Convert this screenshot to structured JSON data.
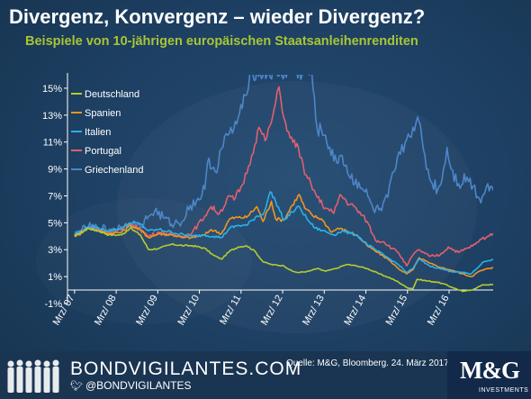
{
  "header": {
    "title": "Divergenz, Konvergenz – wieder Divergenz?",
    "subtitle": "Beispiele von 10-jährigen europäischen Staatsanleihenrenditen"
  },
  "footer": {
    "brand": "BONDVIGILANTES.COM",
    "handle": "@BONDVIGILANTES",
    "source": "Quelle: M&G, Bloomberg. 24. März 2017.",
    "logo": "M&G",
    "logo_sub": "INVESTMENTS"
  },
  "chart_data": {
    "type": "line",
    "title": "",
    "xlabel": "",
    "ylabel": "",
    "ylim": [
      -1,
      16
    ],
    "xlim": [
      2007.0,
      2017.23
    ],
    "y_ticks": [
      -1,
      1,
      3,
      5,
      7,
      9,
      11,
      13,
      15
    ],
    "y_tick_labels": [
      "-1%",
      "1%",
      "3%",
      "5%",
      "7%",
      "9%",
      "11%",
      "13%",
      "15%"
    ],
    "x_ticks": [
      2007.17,
      2008.17,
      2009.17,
      2010.17,
      2011.17,
      2012.17,
      2013.17,
      2014.17,
      2015.17,
      2016.17
    ],
    "x_tick_labels": [
      "Mrz/ 07",
      "Mrz/ 08",
      "Mrz/ 09",
      "Mrz/ 10",
      "Mrz/ 11",
      "Mrz/ 12",
      "Mrz/ 13",
      "Mrz/ 14",
      "Mrz/ 15",
      "Mrz/ 16"
    ],
    "grid": false,
    "legend_position": "top-left",
    "series": [
      {
        "name": "Deutschland",
        "color": "#b5cc2e",
        "points": [
          [
            2007.17,
            4.0
          ],
          [
            2007.5,
            4.6
          ],
          [
            2007.75,
            4.4
          ],
          [
            2008.0,
            4.1
          ],
          [
            2008.3,
            4.1
          ],
          [
            2008.5,
            4.6
          ],
          [
            2008.75,
            4.1
          ],
          [
            2008.95,
            3.0
          ],
          [
            2009.2,
            3.1
          ],
          [
            2009.5,
            3.4
          ],
          [
            2009.8,
            3.3
          ],
          [
            2010.0,
            3.3
          ],
          [
            2010.3,
            3.1
          ],
          [
            2010.5,
            2.6
          ],
          [
            2010.7,
            2.3
          ],
          [
            2010.9,
            2.9
          ],
          [
            2011.1,
            3.2
          ],
          [
            2011.3,
            3.3
          ],
          [
            2011.5,
            2.9
          ],
          [
            2011.7,
            2.1
          ],
          [
            2011.9,
            1.9
          ],
          [
            2012.2,
            1.8
          ],
          [
            2012.4,
            1.4
          ],
          [
            2012.55,
            1.3
          ],
          [
            2012.8,
            1.4
          ],
          [
            2013.0,
            1.6
          ],
          [
            2013.2,
            1.4
          ],
          [
            2013.45,
            1.6
          ],
          [
            2013.7,
            1.9
          ],
          [
            2013.95,
            1.8
          ],
          [
            2014.2,
            1.6
          ],
          [
            2014.5,
            1.2
          ],
          [
            2014.75,
            0.9
          ],
          [
            2014.95,
            0.6
          ],
          [
            2015.15,
            0.2
          ],
          [
            2015.3,
            0.1
          ],
          [
            2015.4,
            0.8
          ],
          [
            2015.6,
            0.7
          ],
          [
            2015.85,
            0.6
          ],
          [
            2016.0,
            0.5
          ],
          [
            2016.25,
            0.2
          ],
          [
            2016.5,
            -0.1
          ],
          [
            2016.7,
            0.0
          ],
          [
            2016.85,
            0.2
          ],
          [
            2017.0,
            0.4
          ],
          [
            2017.23,
            0.4
          ]
        ]
      },
      {
        "name": "Spanien",
        "color": "#f0951e",
        "points": [
          [
            2007.17,
            4.0
          ],
          [
            2007.5,
            4.6
          ],
          [
            2007.75,
            4.4
          ],
          [
            2008.0,
            4.2
          ],
          [
            2008.3,
            4.3
          ],
          [
            2008.5,
            4.8
          ],
          [
            2008.75,
            4.5
          ],
          [
            2008.95,
            3.9
          ],
          [
            2009.2,
            4.2
          ],
          [
            2009.5,
            4.1
          ],
          [
            2009.8,
            3.9
          ],
          [
            2010.0,
            3.9
          ],
          [
            2010.3,
            4.1
          ],
          [
            2010.45,
            4.5
          ],
          [
            2010.7,
            4.2
          ],
          [
            2010.9,
            5.3
          ],
          [
            2011.1,
            5.4
          ],
          [
            2011.3,
            5.4
          ],
          [
            2011.55,
            6.2
          ],
          [
            2011.7,
            5.1
          ],
          [
            2011.9,
            6.6
          ],
          [
            2012.0,
            5.3
          ],
          [
            2012.2,
            5.2
          ],
          [
            2012.4,
            6.3
          ],
          [
            2012.57,
            7.1
          ],
          [
            2012.7,
            6.1
          ],
          [
            2012.9,
            5.5
          ],
          [
            2013.1,
            5.3
          ],
          [
            2013.35,
            4.3
          ],
          [
            2013.5,
            4.6
          ],
          [
            2013.7,
            4.4
          ],
          [
            2013.95,
            4.1
          ],
          [
            2014.2,
            3.3
          ],
          [
            2014.45,
            2.8
          ],
          [
            2014.7,
            2.3
          ],
          [
            2014.95,
            1.6
          ],
          [
            2015.15,
            1.2
          ],
          [
            2015.3,
            1.5
          ],
          [
            2015.45,
            2.4
          ],
          [
            2015.7,
            2.0
          ],
          [
            2015.95,
            1.7
          ],
          [
            2016.2,
            1.5
          ],
          [
            2016.5,
            1.2
          ],
          [
            2016.7,
            1.0
          ],
          [
            2016.9,
            1.4
          ],
          [
            2017.0,
            1.5
          ],
          [
            2017.23,
            1.7
          ]
        ]
      },
      {
        "name": "Italien",
        "color": "#2ab0e8",
        "points": [
          [
            2007.17,
            4.1
          ],
          [
            2007.5,
            4.7
          ],
          [
            2007.75,
            4.6
          ],
          [
            2008.0,
            4.4
          ],
          [
            2008.3,
            4.6
          ],
          [
            2008.5,
            5.0
          ],
          [
            2008.75,
            4.9
          ],
          [
            2008.95,
            4.4
          ],
          [
            2009.2,
            4.5
          ],
          [
            2009.5,
            4.3
          ],
          [
            2009.8,
            4.1
          ],
          [
            2010.0,
            4.0
          ],
          [
            2010.3,
            4.1
          ],
          [
            2010.5,
            4.0
          ],
          [
            2010.7,
            3.9
          ],
          [
            2010.9,
            4.6
          ],
          [
            2011.1,
            4.8
          ],
          [
            2011.3,
            4.8
          ],
          [
            2011.55,
            5.5
          ],
          [
            2011.7,
            5.6
          ],
          [
            2011.87,
            7.3
          ],
          [
            2012.0,
            6.6
          ],
          [
            2012.2,
            5.2
          ],
          [
            2012.4,
            5.8
          ],
          [
            2012.57,
            6.2
          ],
          [
            2012.75,
            5.3
          ],
          [
            2012.95,
            4.6
          ],
          [
            2013.15,
            4.4
          ],
          [
            2013.4,
            4.1
          ],
          [
            2013.6,
            4.4
          ],
          [
            2013.8,
            4.2
          ],
          [
            2013.95,
            4.1
          ],
          [
            2014.2,
            3.4
          ],
          [
            2014.45,
            2.9
          ],
          [
            2014.7,
            2.4
          ],
          [
            2014.95,
            1.9
          ],
          [
            2015.15,
            1.3
          ],
          [
            2015.3,
            1.6
          ],
          [
            2015.45,
            2.3
          ],
          [
            2015.7,
            1.8
          ],
          [
            2015.95,
            1.6
          ],
          [
            2016.2,
            1.4
          ],
          [
            2016.5,
            1.3
          ],
          [
            2016.7,
            1.2
          ],
          [
            2016.9,
            1.8
          ],
          [
            2017.0,
            2.1
          ],
          [
            2017.23,
            2.3
          ]
        ]
      },
      {
        "name": "Portugal",
        "color": "#e25f6f",
        "points": [
          [
            2007.17,
            4.0
          ],
          [
            2007.5,
            4.7
          ],
          [
            2007.75,
            4.5
          ],
          [
            2008.0,
            4.3
          ],
          [
            2008.3,
            4.5
          ],
          [
            2008.5,
            4.9
          ],
          [
            2008.75,
            4.5
          ],
          [
            2008.95,
            4.0
          ],
          [
            2009.2,
            4.3
          ],
          [
            2009.5,
            4.1
          ],
          [
            2009.8,
            4.0
          ],
          [
            2010.0,
            4.3
          ],
          [
            2010.3,
            5.5
          ],
          [
            2010.45,
            6.2
          ],
          [
            2010.65,
            5.7
          ],
          [
            2010.9,
            7.0
          ],
          [
            2011.0,
            6.7
          ],
          [
            2011.2,
            7.8
          ],
          [
            2011.35,
            9.2
          ],
          [
            2011.5,
            10.8
          ],
          [
            2011.6,
            12.1
          ],
          [
            2011.75,
            11.1
          ],
          [
            2011.9,
            12.5
          ],
          [
            2012.0,
            13.9
          ],
          [
            2012.08,
            15.1
          ],
          [
            2012.2,
            12.8
          ],
          [
            2012.35,
            11.3
          ],
          [
            2012.55,
            10.6
          ],
          [
            2012.7,
            8.6
          ],
          [
            2012.85,
            7.9
          ],
          [
            2013.0,
            6.9
          ],
          [
            2013.2,
            6.1
          ],
          [
            2013.4,
            5.7
          ],
          [
            2013.55,
            7.1
          ],
          [
            2013.7,
            6.6
          ],
          [
            2013.95,
            6.0
          ],
          [
            2014.2,
            5.1
          ],
          [
            2014.4,
            3.7
          ],
          [
            2014.6,
            3.6
          ],
          [
            2014.8,
            3.1
          ],
          [
            2014.95,
            2.8
          ],
          [
            2015.15,
            1.8
          ],
          [
            2015.3,
            2.6
          ],
          [
            2015.45,
            3.0
          ],
          [
            2015.7,
            2.5
          ],
          [
            2015.95,
            2.6
          ],
          [
            2016.15,
            3.2
          ],
          [
            2016.4,
            2.8
          ],
          [
            2016.6,
            3.1
          ],
          [
            2016.8,
            3.4
          ],
          [
            2016.95,
            3.8
          ],
          [
            2017.1,
            4.0
          ],
          [
            2017.23,
            4.2
          ]
        ]
      },
      {
        "name": "Griechenland",
        "color": "#4d86c8",
        "points": [
          [
            2007.17,
            4.1
          ],
          [
            2007.5,
            4.7
          ],
          [
            2007.75,
            4.6
          ],
          [
            2008.0,
            4.5
          ],
          [
            2008.3,
            4.7
          ],
          [
            2008.5,
            5.0
          ],
          [
            2008.75,
            4.7
          ],
          [
            2008.95,
            5.5
          ],
          [
            2009.1,
            5.9
          ],
          [
            2009.3,
            5.4
          ],
          [
            2009.5,
            4.9
          ],
          [
            2009.75,
            5.1
          ],
          [
            2009.95,
            6.3
          ],
          [
            2010.1,
            6.6
          ],
          [
            2010.3,
            7.5
          ],
          [
            2010.4,
            9.8
          ],
          [
            2010.55,
            8.8
          ],
          [
            2010.7,
            10.5
          ],
          [
            2010.85,
            11.5
          ],
          [
            2011.0,
            12.0
          ],
          [
            2011.2,
            13.5
          ],
          [
            2011.38,
            16.0
          ],
          [
            2011.45,
            16.1
          ],
          [
            2012.85,
            16.1
          ],
          [
            2012.9,
            15.0
          ],
          [
            2013.0,
            12.0
          ],
          [
            2013.2,
            11.5
          ],
          [
            2013.4,
            9.6
          ],
          [
            2013.6,
            10.0
          ],
          [
            2013.8,
            8.3
          ],
          [
            2014.0,
            8.0
          ],
          [
            2014.15,
            7.3
          ],
          [
            2014.35,
            6.0
          ],
          [
            2014.55,
            5.9
          ],
          [
            2014.7,
            6.9
          ],
          [
            2014.85,
            8.8
          ],
          [
            2015.0,
            10.1
          ],
          [
            2015.15,
            11.2
          ],
          [
            2015.3,
            12.1
          ],
          [
            2015.45,
            12.5
          ],
          [
            2015.55,
            10.5
          ],
          [
            2015.7,
            8.3
          ],
          [
            2015.9,
            7.5
          ],
          [
            2016.0,
            8.2
          ],
          [
            2016.12,
            10.6
          ],
          [
            2016.22,
            9.0
          ],
          [
            2016.4,
            7.9
          ],
          [
            2016.6,
            8.4
          ],
          [
            2016.75,
            7.7
          ],
          [
            2016.9,
            6.8
          ],
          [
            2017.0,
            7.1
          ],
          [
            2017.1,
            7.9
          ],
          [
            2017.23,
            7.4
          ]
        ]
      }
    ]
  }
}
